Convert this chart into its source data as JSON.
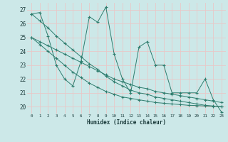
{
  "background_color": "#cce8e8",
  "grid_color": "#b8d8d8",
  "line_color": "#2e7d6e",
  "xlim": [
    -0.5,
    23.5
  ],
  "ylim": [
    19.5,
    27.5
  ],
  "ytick_vals": [
    20,
    21,
    22,
    23,
    24,
    25,
    26,
    27
  ],
  "xtick_vals": [
    0,
    1,
    2,
    3,
    4,
    5,
    6,
    7,
    8,
    9,
    10,
    11,
    12,
    13,
    14,
    15,
    16,
    17,
    18,
    19,
    20,
    21,
    22,
    23
  ],
  "xlabel": "Humidex (Indice chaleur)",
  "series": [
    [
      26.7,
      26.8,
      25.1,
      23.0,
      22.0,
      21.5,
      23.3,
      26.5,
      26.1,
      27.2,
      23.8,
      22.0,
      21.0,
      24.3,
      24.7,
      23.0,
      23.0,
      21.0,
      21.0,
      21.0,
      21.0,
      22.0,
      20.5,
      19.6
    ],
    [
      26.7,
      26.2,
      25.7,
      25.1,
      24.6,
      24.1,
      23.6,
      23.1,
      22.7,
      22.2,
      21.8,
      21.5,
      21.2,
      21.0,
      20.9,
      20.7,
      20.6,
      20.5,
      20.4,
      20.3,
      20.2,
      20.1,
      20.05,
      20.0
    ],
    [
      25.0,
      24.7,
      24.4,
      24.1,
      23.8,
      23.5,
      23.2,
      22.9,
      22.6,
      22.3,
      22.0,
      21.8,
      21.6,
      21.4,
      21.3,
      21.1,
      21.0,
      20.9,
      20.8,
      20.7,
      20.6,
      20.5,
      20.4,
      20.3
    ],
    [
      25.0,
      24.5,
      24.0,
      23.5,
      23.0,
      22.5,
      22.1,
      21.7,
      21.4,
      21.1,
      20.9,
      20.7,
      20.6,
      20.5,
      20.4,
      20.3,
      20.25,
      20.2,
      20.15,
      20.1,
      20.08,
      20.05,
      20.03,
      20.0
    ]
  ]
}
